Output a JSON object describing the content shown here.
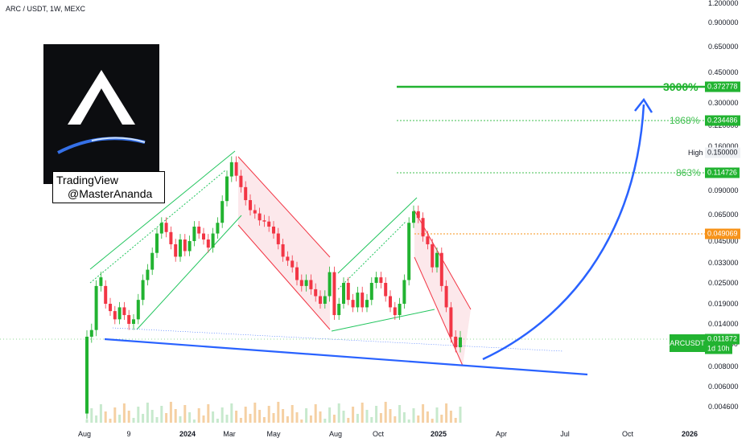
{
  "header": {
    "symbol": "ARC / USDT, 1W, MEXC"
  },
  "logo": {
    "line1": "TradingView",
    "line2": "@MasterAnanda"
  },
  "price_axis": {
    "ticks": [
      "1.200000",
      "0.900000",
      "0.650000",
      "0.450000",
      "0.300000",
      "0.220000",
      "0.160000",
      "0.090000",
      "0.065000",
      "0.045000",
      "0.033000",
      "0.025000",
      "0.019000",
      "0.014000",
      "0.011000",
      "0.008000",
      "0.006000",
      "0.004600"
    ]
  },
  "time_axis": {
    "labels": [
      "Aug",
      "9",
      "2024",
      "Mar",
      "May",
      "Aug",
      "Oct",
      "2025",
      "Apr",
      "Jul",
      "Oct",
      "2026"
    ]
  },
  "annotations": {
    "target_3000": {
      "pct": "3000%",
      "price": "0.372778"
    },
    "target_1868": {
      "pct": "1868%",
      "price": "0.234486"
    },
    "target_863": {
      "pct": "863%",
      "price": "0.114726"
    },
    "level_orange": {
      "price": "0.049069"
    },
    "high": {
      "label": "High",
      "price": "0.150000"
    },
    "current": {
      "ticker": "ARCUSDT",
      "price": "0.011872",
      "countdown": "1d 10h"
    }
  },
  "colors": {
    "up": "#22ab94",
    "down": "#f23645",
    "green_line": "#22c55e",
    "blue_line": "#2962ff",
    "orange": "#f7931a"
  },
  "chart_data": {
    "type": "candlestick",
    "title": "ARC / USDT, 1W, MEXC",
    "y_scale": "log",
    "ylim": [
      0.0042,
      1.25
    ],
    "series": [
      {
        "values": [
          [
            0.0042,
            0.012
          ],
          [
            0.012,
            0.013
          ],
          [
            0.013,
            0.024
          ],
          [
            0.024,
            0.027
          ],
          [
            0.024,
            0.019
          ],
          [
            0.019,
            0.017
          ],
          [
            0.017,
            0.015
          ],
          [
            0.015,
            0.018
          ],
          [
            0.018,
            0.016
          ],
          [
            0.016,
            0.014
          ],
          [
            0.014,
            0.015
          ],
          [
            0.015,
            0.02
          ],
          [
            0.02,
            0.026
          ],
          [
            0.026,
            0.03
          ],
          [
            0.03,
            0.038
          ],
          [
            0.038,
            0.05
          ],
          [
            0.05,
            0.058
          ],
          [
            0.058,
            0.051
          ],
          [
            0.051,
            0.043
          ],
          [
            0.043,
            0.036
          ],
          [
            0.036,
            0.046
          ],
          [
            0.046,
            0.039
          ],
          [
            0.039,
            0.045
          ],
          [
            0.045,
            0.055
          ],
          [
            0.055,
            0.05
          ],
          [
            0.05,
            0.046
          ],
          [
            0.046,
            0.041
          ],
          [
            0.041,
            0.05
          ],
          [
            0.05,
            0.058
          ],
          [
            0.058,
            0.078
          ],
          [
            0.078,
            0.108
          ],
          [
            0.108,
            0.13
          ],
          [
            0.13,
            0.109
          ],
          [
            0.109,
            0.094
          ],
          [
            0.094,
            0.079
          ],
          [
            0.079,
            0.069
          ],
          [
            0.069,
            0.066
          ],
          [
            0.066,
            0.06
          ],
          [
            0.06,
            0.059
          ],
          [
            0.059,
            0.055
          ],
          [
            0.055,
            0.05
          ],
          [
            0.05,
            0.043
          ],
          [
            0.043,
            0.036
          ],
          [
            0.036,
            0.034
          ],
          [
            0.034,
            0.031
          ],
          [
            0.031,
            0.026
          ],
          [
            0.026,
            0.024
          ],
          [
            0.024,
            0.026
          ],
          [
            0.026,
            0.023
          ],
          [
            0.023,
            0.021
          ],
          [
            0.021,
            0.019
          ],
          [
            0.019,
            0.021
          ],
          [
            0.021,
            0.029
          ],
          [
            0.029,
            0.016
          ],
          [
            0.016,
            0.019
          ],
          [
            0.019,
            0.025
          ],
          [
            0.025,
            0.02
          ],
          [
            0.02,
            0.018
          ],
          [
            0.018,
            0.022
          ],
          [
            0.022,
            0.018
          ],
          [
            0.018,
            0.02
          ],
          [
            0.02,
            0.025
          ],
          [
            0.025,
            0.027
          ],
          [
            0.027,
            0.025
          ],
          [
            0.025,
            0.021
          ],
          [
            0.021,
            0.018
          ],
          [
            0.018,
            0.016
          ],
          [
            0.016,
            0.019
          ],
          [
            0.019,
            0.026
          ],
          [
            0.026,
            0.058
          ],
          [
            0.058,
            0.068
          ],
          [
            0.068,
            0.062
          ],
          [
            0.062,
            0.048
          ],
          [
            0.048,
            0.043
          ],
          [
            0.043,
            0.031
          ],
          [
            0.031,
            0.038
          ],
          [
            0.038,
            0.024
          ],
          [
            0.024,
            0.018
          ],
          [
            0.018,
            0.012
          ],
          [
            0.012,
            0.0105
          ],
          [
            0.0105,
            0.0119
          ]
        ]
      }
    ]
  }
}
